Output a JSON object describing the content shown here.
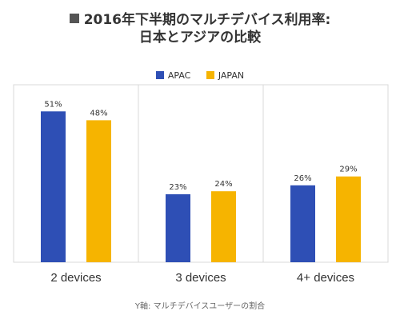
{
  "chart_data": {
    "type": "bar",
    "title_line1": "2016年下半期のマルチデバイス利用率:",
    "title_line2": "日本とアジアの比較",
    "categories": [
      "2 devices",
      "3 devices",
      "4+ devices"
    ],
    "series": [
      {
        "name": "APAC",
        "color": "#2e4fb5",
        "values": [
          51,
          23,
          26
        ],
        "labels": [
          "51%",
          "23%",
          "26%"
        ]
      },
      {
        "name": "JAPAN",
        "color": "#f6b400",
        "values": [
          48,
          24,
          29
        ],
        "labels": [
          "48%",
          "24%",
          "29%"
        ]
      }
    ],
    "ylim": [
      0,
      60
    ],
    "ylabel": "Y軸: マルチデバイスユーザーの割合",
    "legend_position": "top-center",
    "grid": false
  }
}
